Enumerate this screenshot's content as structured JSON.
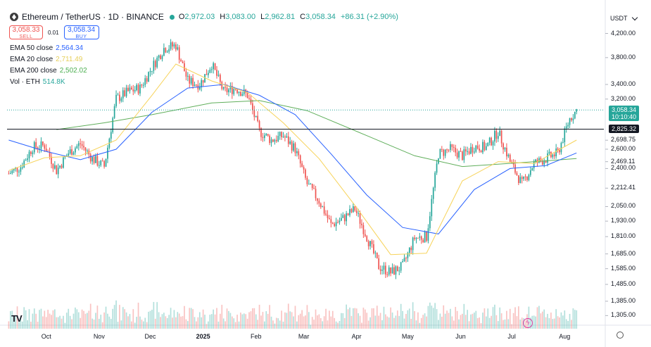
{
  "header": {
    "symbol": "Ethereum / TetherUS · 1D · BINANCE",
    "open_label": "O",
    "open": "2,972.03",
    "high_label": "H",
    "high": "3,083.00",
    "low_label": "L",
    "low": "2,962.81",
    "close_label": "C",
    "close": "3,058.34",
    "change": "+86.31 (+2.90%)",
    "sell_price": "3,058.33",
    "sell_label": "SELL",
    "spread": "0.01",
    "buy_price": "3,058.34",
    "buy_label": "BUY",
    "currency": "USDT"
  },
  "legend": [
    {
      "label": "EMA 50 close",
      "value": "2,564.34",
      "color": "#2962ff"
    },
    {
      "label": "EMA 20 close",
      "value": "2,711.49",
      "color": "#f7e06a"
    },
    {
      "label": "EMA 200 close",
      "value": "2,502.02",
      "color": "#4caf50"
    },
    {
      "label": "Vol · ETH",
      "value": "514.8K",
      "color": "#26a69a"
    }
  ],
  "colors": {
    "up": "#26a69a",
    "down": "#ef5350",
    "ema50": "#2962ff",
    "ema20": "#f7d35a",
    "ema200": "#5fae5a"
  },
  "chart_data": {
    "type": "candlestick",
    "scale": "log",
    "y_ticks": [
      4200,
      3800,
      3400,
      3200,
      2698.75,
      2600,
      2469.11,
      2400,
      2212.41,
      2050,
      1930,
      1810,
      1685,
      1585,
      1485,
      1385,
      1305
    ],
    "y_tick_labels": [
      "4,200.00",
      "3,800.00",
      "3,400.00",
      "3,200.00",
      "2,698.75",
      "2,600.00",
      "2,469.11",
      "2,400.00",
      "2,212.41",
      "2,050.00",
      "1,930.00",
      "1,810.00",
      "1,685.00",
      "1,585.00",
      "1,485.00",
      "1,385.00",
      "1,305.00"
    ],
    "x_ticks": [
      "Oct",
      "Nov",
      "Dec",
      "2025",
      "Feb",
      "Mar",
      "Apr",
      "May",
      "Jun",
      "Jul",
      "Aug"
    ],
    "last_price": {
      "value": 3058.34,
      "label": "3,058.34",
      "countdown": "10:10:40"
    },
    "horizontal_line": {
      "value": 2825.32,
      "label": "2,825.32"
    },
    "close_path": [
      {
        "date": "2024-09-09",
        "close": 2350
      },
      {
        "date": "2024-09-16",
        "close": 2420
      },
      {
        "date": "2024-09-23",
        "close": 2620
      },
      {
        "date": "2024-09-30",
        "close": 2640
      },
      {
        "date": "2024-10-07",
        "close": 2380
      },
      {
        "date": "2024-10-14",
        "close": 2560
      },
      {
        "date": "2024-10-21",
        "close": 2660
      },
      {
        "date": "2024-10-28",
        "close": 2500
      },
      {
        "date": "2024-11-04",
        "close": 2420
      },
      {
        "date": "2024-11-11",
        "close": 3200
      },
      {
        "date": "2024-11-18",
        "close": 3300
      },
      {
        "date": "2024-11-25",
        "close": 3350
      },
      {
        "date": "2024-12-02",
        "close": 3650
      },
      {
        "date": "2024-12-09",
        "close": 3950
      },
      {
        "date": "2024-12-16",
        "close": 4000
      },
      {
        "date": "2024-12-23",
        "close": 3450
      },
      {
        "date": "2024-12-30",
        "close": 3400
      },
      {
        "date": "2025-01-06",
        "close": 3700
      },
      {
        "date": "2025-01-13",
        "close": 3300
      },
      {
        "date": "2025-01-20",
        "close": 3350
      },
      {
        "date": "2025-01-27",
        "close": 3250
      },
      {
        "date": "2025-02-03",
        "close": 2800
      },
      {
        "date": "2025-02-10",
        "close": 2700
      },
      {
        "date": "2025-02-17",
        "close": 2750
      },
      {
        "date": "2025-02-24",
        "close": 2600
      },
      {
        "date": "2025-03-03",
        "close": 2250
      },
      {
        "date": "2025-03-10",
        "close": 2100
      },
      {
        "date": "2025-03-17",
        "close": 1900
      },
      {
        "date": "2025-03-24",
        "close": 1950
      },
      {
        "date": "2025-03-31",
        "close": 2030
      },
      {
        "date": "2025-04-07",
        "close": 1810
      },
      {
        "date": "2025-04-14",
        "close": 1600
      },
      {
        "date": "2025-04-21",
        "close": 1560
      },
      {
        "date": "2025-04-28",
        "close": 1600
      },
      {
        "date": "2025-05-05",
        "close": 1800
      },
      {
        "date": "2025-05-12",
        "close": 1810
      },
      {
        "date": "2025-05-19",
        "close": 2550
      },
      {
        "date": "2025-05-26",
        "close": 2600
      },
      {
        "date": "2025-06-02",
        "close": 2530
      },
      {
        "date": "2025-06-09",
        "close": 2630
      },
      {
        "date": "2025-06-16",
        "close": 2620
      },
      {
        "date": "2025-06-23",
        "close": 2800
      },
      {
        "date": "2025-06-30",
        "close": 2470
      },
      {
        "date": "2025-07-07",
        "close": 2250
      },
      {
        "date": "2025-07-14",
        "close": 2450
      },
      {
        "date": "2025-07-21",
        "close": 2500
      },
      {
        "date": "2025-07-28",
        "close": 2560
      },
      {
        "date": "2025-08-04",
        "close": 2950
      },
      {
        "date": "2025-08-08",
        "close": 3058
      }
    ],
    "ema20": [
      {
        "date": "2024-09-09",
        "v": 2380
      },
      {
        "date": "2024-09-30",
        "v": 2510
      },
      {
        "date": "2024-10-21",
        "v": 2530
      },
      {
        "date": "2024-11-11",
        "v": 2700
      },
      {
        "date": "2024-12-02",
        "v": 3250
      },
      {
        "date": "2024-12-16",
        "v": 3700
      },
      {
        "date": "2025-01-06",
        "v": 3450
      },
      {
        "date": "2025-01-27",
        "v": 3290
      },
      {
        "date": "2025-02-17",
        "v": 2900
      },
      {
        "date": "2025-03-10",
        "v": 2500
      },
      {
        "date": "2025-03-31",
        "v": 2060
      },
      {
        "date": "2025-04-21",
        "v": 1680
      },
      {
        "date": "2025-05-12",
        "v": 1690
      },
      {
        "date": "2025-06-02",
        "v": 2280
      },
      {
        "date": "2025-06-23",
        "v": 2470
      },
      {
        "date": "2025-07-14",
        "v": 2450
      },
      {
        "date": "2025-08-08",
        "v": 2700
      }
    ],
    "ema50": [
      {
        "date": "2024-09-09",
        "v": 2700
      },
      {
        "date": "2024-09-30",
        "v": 2580
      },
      {
        "date": "2024-10-21",
        "v": 2490
      },
      {
        "date": "2024-11-11",
        "v": 2600
      },
      {
        "date": "2024-12-02",
        "v": 3030
      },
      {
        "date": "2024-12-23",
        "v": 3350
      },
      {
        "date": "2025-01-13",
        "v": 3400
      },
      {
        "date": "2025-02-03",
        "v": 3250
      },
      {
        "date": "2025-02-24",
        "v": 3000
      },
      {
        "date": "2025-03-17",
        "v": 2550
      },
      {
        "date": "2025-04-07",
        "v": 2150
      },
      {
        "date": "2025-04-28",
        "v": 1880
      },
      {
        "date": "2025-05-19",
        "v": 1830
      },
      {
        "date": "2025-06-09",
        "v": 2200
      },
      {
        "date": "2025-06-30",
        "v": 2400
      },
      {
        "date": "2025-07-21",
        "v": 2430
      },
      {
        "date": "2025-08-08",
        "v": 2560
      }
    ],
    "ema200": [
      {
        "date": "2024-10-07",
        "v": 2820
      },
      {
        "date": "2024-11-04",
        "v": 2900
      },
      {
        "date": "2024-12-02",
        "v": 3000
      },
      {
        "date": "2025-01-06",
        "v": 3150
      },
      {
        "date": "2025-02-03",
        "v": 3180
      },
      {
        "date": "2025-03-03",
        "v": 3050
      },
      {
        "date": "2025-04-07",
        "v": 2750
      },
      {
        "date": "2025-05-05",
        "v": 2530
      },
      {
        "date": "2025-06-02",
        "v": 2420
      },
      {
        "date": "2025-07-07",
        "v": 2460
      },
      {
        "date": "2025-08-08",
        "v": 2502
      }
    ],
    "volume": {
      "unit": "ETH",
      "last": "514.8K"
    }
  }
}
